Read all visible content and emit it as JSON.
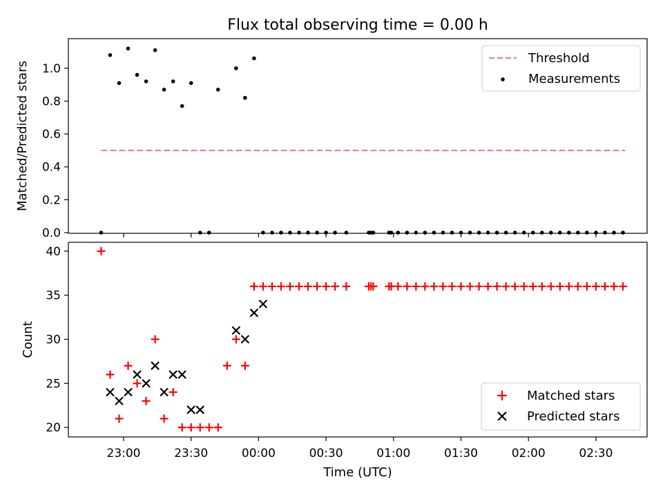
{
  "figure": {
    "title": "Flux total observing time = 0.00 h"
  },
  "colors": {
    "threshold": "#f08080",
    "measurements": "#000000",
    "matched": "#ff0000",
    "predicted": "#000000"
  },
  "chart_data": [
    {
      "type": "scatter",
      "panel": "top",
      "title": "Flux total observing time = 0.00 h",
      "ylabel": "Matched/Predicted stars",
      "xlabel": "",
      "ylim": [
        0,
        1.18
      ],
      "yticks": [
        "0.0",
        "0.2",
        "0.4",
        "0.6",
        "0.8",
        "1.0"
      ],
      "legend": {
        "placement": "top-right",
        "entries": [
          "Threshold",
          "Measurements"
        ]
      },
      "series": [
        {
          "name": "Threshold",
          "style": "dashed-line",
          "x": [
            "22:50",
            "02:43"
          ],
          "y": [
            0.5,
            0.5
          ]
        },
        {
          "name": "Measurements",
          "style": "dot",
          "x": [
            "22:50",
            "22:54",
            "22:58",
            "23:02",
            "23:06",
            "23:10",
            "23:14",
            "23:18",
            "23:22",
            "23:26",
            "23:30",
            "23:34",
            "23:38",
            "23:42",
            "23:50",
            "23:54",
            "23:58",
            "00:02",
            "00:06",
            "00:10",
            "00:14",
            "00:18",
            "00:22",
            "00:26",
            "00:30",
            "00:34",
            "00:39",
            "00:49",
            "00:50",
            "00:51",
            "00:58",
            "00:59",
            "01:02",
            "01:06",
            "01:10",
            "01:14",
            "01:18",
            "01:22",
            "01:26",
            "01:30",
            "01:34",
            "01:38",
            "01:42",
            "01:46",
            "01:50",
            "01:54",
            "01:58",
            "02:02",
            "02:06",
            "02:10",
            "02:14",
            "02:18",
            "02:22",
            "02:26",
            "02:30",
            "02:34",
            "02:38",
            "02:42"
          ],
          "y": [
            0.0,
            1.08,
            0.91,
            1.12,
            0.96,
            0.92,
            1.11,
            0.87,
            0.92,
            0.77,
            0.91,
            0.0,
            0.0,
            0.87,
            1.0,
            0.82,
            1.06,
            0.0,
            0.0,
            0.0,
            0.0,
            0.0,
            0.0,
            0.0,
            0.0,
            0.0,
            0.0,
            0.0,
            0.0,
            0.0,
            0.0,
            0.0,
            0.0,
            0.0,
            0.0,
            0.0,
            0.0,
            0.0,
            0.0,
            0.0,
            0.0,
            0.0,
            0.0,
            0.0,
            0.0,
            0.0,
            0.0,
            0.0,
            0.0,
            0.0,
            0.0,
            0.0,
            0.0,
            0.0,
            0.0,
            0.0,
            0.0,
            0.0
          ]
        }
      ]
    },
    {
      "type": "scatter",
      "panel": "bottom",
      "ylabel": "Count",
      "xlabel": "Time (UTC)",
      "ylim": [
        19,
        41
      ],
      "yticks": [
        "20",
        "25",
        "30",
        "35",
        "40"
      ],
      "xticks": [
        "23:00",
        "23:30",
        "00:00",
        "00:30",
        "01:00",
        "01:30",
        "02:00",
        "02:30"
      ],
      "legend": {
        "placement": "bottom-right",
        "entries": [
          "Matched stars",
          "Predicted stars"
        ]
      },
      "series": [
        {
          "name": "Matched stars",
          "style": "plus",
          "x": [
            "22:50",
            "22:54",
            "22:58",
            "23:02",
            "23:06",
            "23:10",
            "23:14",
            "23:18",
            "23:22",
            "23:26",
            "23:30",
            "23:34",
            "23:38",
            "23:42",
            "23:46",
            "23:50",
            "23:54",
            "23:58",
            "00:02",
            "00:06",
            "00:10",
            "00:14",
            "00:18",
            "00:22",
            "00:26",
            "00:30",
            "00:34",
            "00:39",
            "00:49",
            "00:50",
            "00:51",
            "00:58",
            "00:59",
            "01:02",
            "01:06",
            "01:10",
            "01:14",
            "01:18",
            "01:22",
            "01:26",
            "01:30",
            "01:34",
            "01:38",
            "01:42",
            "01:46",
            "01:50",
            "01:54",
            "01:58",
            "02:02",
            "02:06",
            "02:10",
            "02:14",
            "02:18",
            "02:22",
            "02:26",
            "02:30",
            "02:34",
            "02:38",
            "02:42"
          ],
          "y": [
            40,
            26,
            21,
            27,
            25,
            23,
            30,
            21,
            24,
            20,
            20,
            20,
            20,
            20,
            27,
            30,
            27,
            36,
            36,
            36,
            36,
            36,
            36,
            36,
            36,
            36,
            36,
            36,
            36,
            36,
            36,
            36,
            36,
            36,
            36,
            36,
            36,
            36,
            36,
            36,
            36,
            36,
            36,
            36,
            36,
            36,
            36,
            36,
            36,
            36,
            36,
            36,
            36,
            36,
            36,
            36,
            36,
            36,
            36
          ]
        },
        {
          "name": "Predicted stars",
          "style": "x",
          "x": [
            "22:54",
            "22:58",
            "23:02",
            "23:06",
            "23:10",
            "23:14",
            "23:18",
            "23:22",
            "23:26",
            "23:30",
            "23:34",
            "23:50",
            "23:54",
            "23:58",
            "00:02"
          ],
          "y": [
            24,
            23,
            24,
            26,
            25,
            27,
            24,
            26,
            26,
            22,
            22,
            31,
            30,
            33,
            34
          ]
        }
      ]
    }
  ]
}
